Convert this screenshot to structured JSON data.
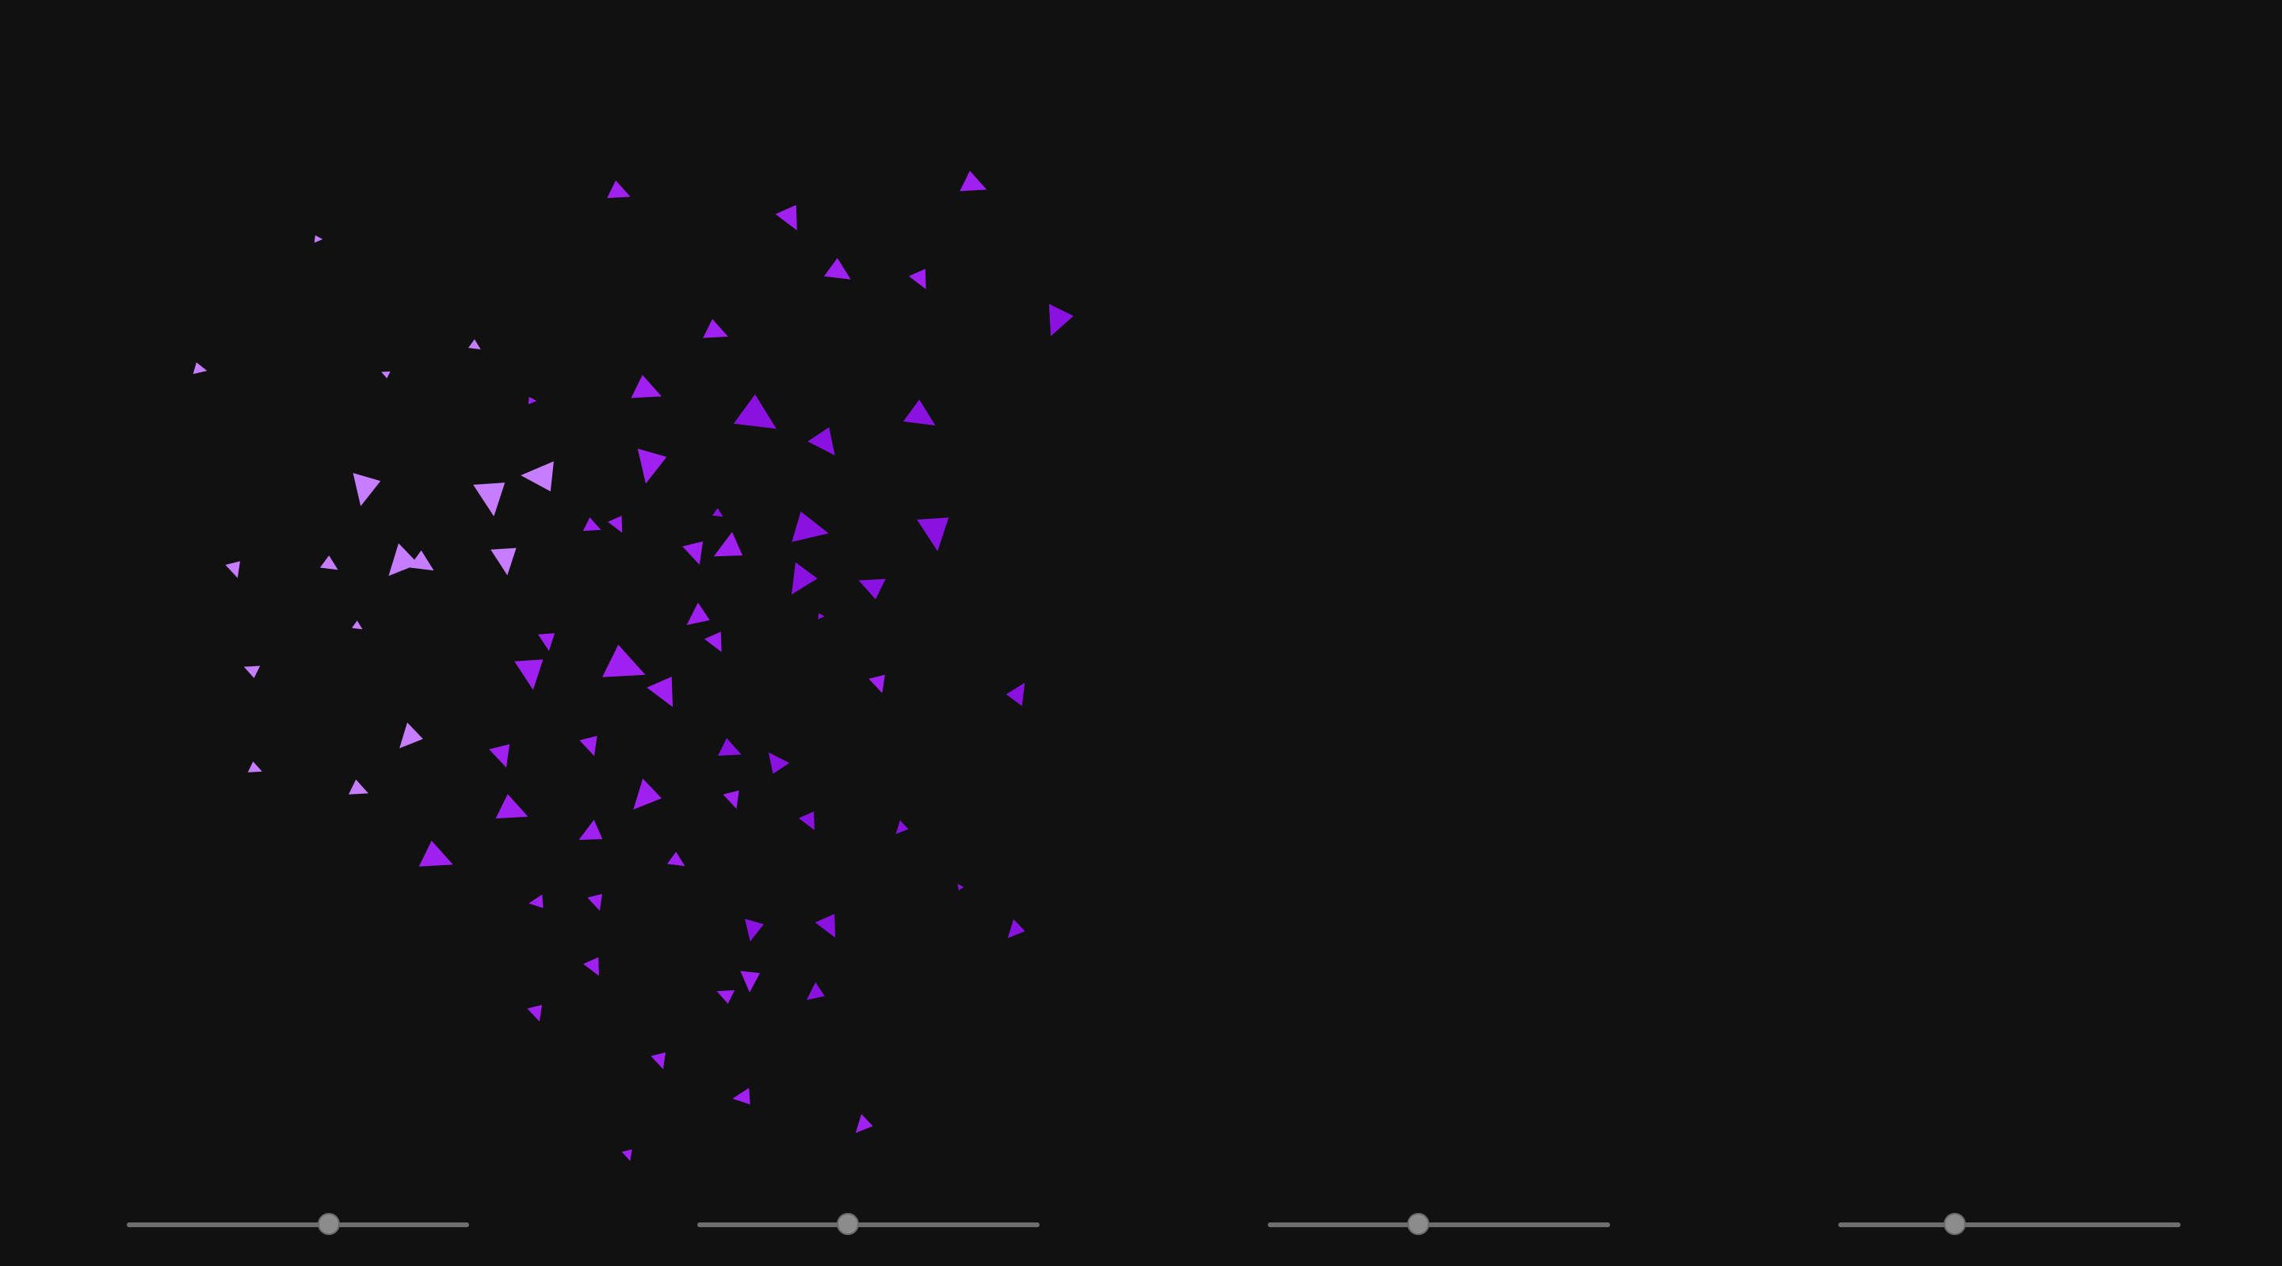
{
  "colors": {
    "background": "#111112",
    "slider_track": "#6e6e6e",
    "slider_thumb": "#8c8c8c",
    "particle_light": "#c77dff",
    "particle_mid": "#a020f0",
    "particle_deep": "#8a12e0"
  },
  "shape": "triangle",
  "sliders": [
    {
      "name": "slider-1",
      "value": 0.59
    },
    {
      "name": "slider-2",
      "value": 0.44
    },
    {
      "name": "slider-3",
      "value": 0.44
    },
    {
      "name": "slider-4",
      "value": 0.34
    }
  ]
}
